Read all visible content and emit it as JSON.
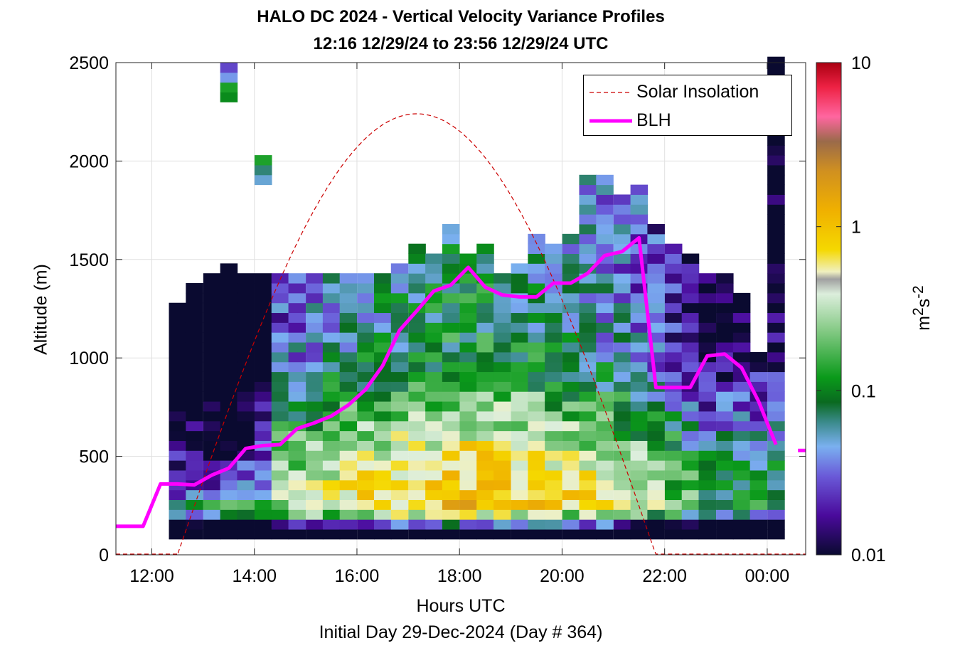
{
  "chart_data": {
    "type": "heatmap",
    "title": "HALO DC 2024 - Vertical Velocity Variance Profiles",
    "subtitle": "12:16 12/29/24 to 23:56 12/29/24  UTC",
    "xlabel": "Hours UTC",
    "xlabel2": "Initial Day 29-Dec-2024 (Day # 364)",
    "ylabel": "Altitude (m)",
    "xlim_hours": [
      11.3,
      24.75
    ],
    "ylim": [
      0,
      2500
    ],
    "x_ticks": [
      {
        "v": 12,
        "label": "12:00"
      },
      {
        "v": 14,
        "label": "14:00"
      },
      {
        "v": 16,
        "label": "16:00"
      },
      {
        "v": 18,
        "label": "18:00"
      },
      {
        "v": 20,
        "label": "20:00"
      },
      {
        "v": 22,
        "label": "22:00"
      },
      {
        "v": 24,
        "label": "00:00"
      }
    ],
    "y_ticks": [
      0,
      500,
      1000,
      1500,
      2000,
      2500
    ],
    "grid": true,
    "colorbar": {
      "scale": "log",
      "range": [
        0.01,
        10
      ],
      "ticks": [
        {
          "v": 0.01,
          "label": "0.01"
        },
        {
          "v": 0.1,
          "label": "0.1"
        },
        {
          "v": 1,
          "label": "1"
        },
        {
          "v": 10,
          "label": "10"
        }
      ],
      "label_base": "m",
      "label_exp1": "2",
      "label_mid": "s",
      "label_exp2": "-2"
    },
    "legend_position": "top-right",
    "legend": [
      {
        "name": "Solar Insolation",
        "color": "#cc0000",
        "style": "dashed"
      },
      {
        "name": "BLH",
        "color": "#ff00ff",
        "style": "solid"
      }
    ],
    "heatmap": {
      "columns": [
        {
          "t": 12.5,
          "bottom": 100,
          "top": 1240
        },
        {
          "t": 12.83,
          "bottom": 100,
          "top": 1340
        },
        {
          "t": 13.17,
          "bottom": 100,
          "top": 1390
        },
        {
          "t": 13.5,
          "bottom": 100,
          "top": 1480,
          "extra": [
            2300,
            2500
          ]
        },
        {
          "t": 13.83,
          "bottom": 100,
          "top": 1390
        },
        {
          "t": 14.17,
          "bottom": 100,
          "top": 1390,
          "extra": [
            1880,
            2010
          ]
        },
        {
          "t": 14.5,
          "bottom": 100,
          "top": 1390
        },
        {
          "t": 14.83,
          "bottom": 100,
          "top": 1390
        },
        {
          "t": 15.17,
          "bottom": 100,
          "top": 1430
        },
        {
          "t": 15.5,
          "bottom": 100,
          "top": 1390
        },
        {
          "t": 15.83,
          "bottom": 100,
          "top": 1390
        },
        {
          "t": 16.17,
          "bottom": 100,
          "top": 1390
        },
        {
          "t": 16.5,
          "bottom": 100,
          "top": 1430
        },
        {
          "t": 16.83,
          "bottom": 100,
          "top": 1480
        },
        {
          "t": 17.17,
          "bottom": 100,
          "top": 1580
        },
        {
          "t": 17.5,
          "bottom": 100,
          "top": 1530
        },
        {
          "t": 17.83,
          "bottom": 100,
          "top": 1670
        },
        {
          "t": 18.17,
          "bottom": 100,
          "top": 1530
        },
        {
          "t": 18.5,
          "bottom": 100,
          "top": 1580
        },
        {
          "t": 18.83,
          "bottom": 100,
          "top": 1390
        },
        {
          "t": 19.17,
          "bottom": 100,
          "top": 1480
        },
        {
          "t": 19.5,
          "bottom": 100,
          "top": 1630
        },
        {
          "t": 19.83,
          "bottom": 100,
          "top": 1580
        },
        {
          "t": 20.17,
          "bottom": 100,
          "top": 1630
        },
        {
          "t": 20.5,
          "bottom": 100,
          "top": 1920
        },
        {
          "t": 20.83,
          "bottom": 100,
          "top": 1920
        },
        {
          "t": 21.17,
          "bottom": 100,
          "top": 1820
        },
        {
          "t": 21.5,
          "bottom": 100,
          "top": 1860
        },
        {
          "t": 21.83,
          "bottom": 100,
          "top": 1670
        },
        {
          "t": 22.17,
          "bottom": 100,
          "top": 1580
        },
        {
          "t": 22.5,
          "bottom": 100,
          "top": 1530
        },
        {
          "t": 22.83,
          "bottom": 100,
          "top": 1430
        },
        {
          "t": 23.17,
          "bottom": 100,
          "top": 1390
        },
        {
          "t": 23.5,
          "bottom": 100,
          "top": 1300
        },
        {
          "t": 23.83,
          "bottom": 100,
          "top": 1000
        },
        {
          "t": 24.17,
          "bottom": 100,
          "top": 2500
        }
      ],
      "layers": [
        {
          "alt": 100,
          "v": 0.01
        },
        {
          "alt": 200,
          "v": 0.8
        },
        {
          "alt": 400,
          "v": 0.6
        },
        {
          "alt": 700,
          "v": 0.2
        },
        {
          "alt": 1000,
          "v": 0.08
        },
        {
          "alt": 1400,
          "v": 0.06
        }
      ]
    },
    "series": [
      {
        "name": "BLH",
        "x": [
          11.3,
          11.83,
          12.17,
          12.5,
          12.83,
          13.17,
          13.5,
          13.83,
          14.17,
          14.5,
          14.83,
          15.17,
          15.5,
          15.83,
          16.17,
          16.5,
          16.83,
          17.17,
          17.5,
          17.83,
          18.17,
          18.5,
          18.83,
          19.17,
          19.5,
          19.83,
          20.17,
          20.5,
          20.83,
          21.17,
          21.5,
          21.83,
          22.17,
          22.5,
          22.83,
          23.17,
          23.5,
          23.83,
          24.17
        ],
        "y": [
          145,
          145,
          360,
          360,
          355,
          405,
          440,
          540,
          555,
          560,
          640,
          670,
          705,
          760,
          840,
          960,
          1140,
          1240,
          1340,
          1370,
          1460,
          1360,
          1320,
          1310,
          1310,
          1380,
          1380,
          1430,
          1520,
          1540,
          1610,
          850,
          850,
          850,
          1010,
          1020,
          950,
          780,
          560
        ]
      },
      {
        "name": "BLH-end",
        "x": [
          24.6,
          24.75
        ],
        "y": [
          530,
          530
        ]
      },
      {
        "name": "Solar Insolation",
        "peak_time": 17.17,
        "peak_alt": 2240,
        "start_time": 12.5,
        "end_time": 21.83
      }
    ]
  }
}
